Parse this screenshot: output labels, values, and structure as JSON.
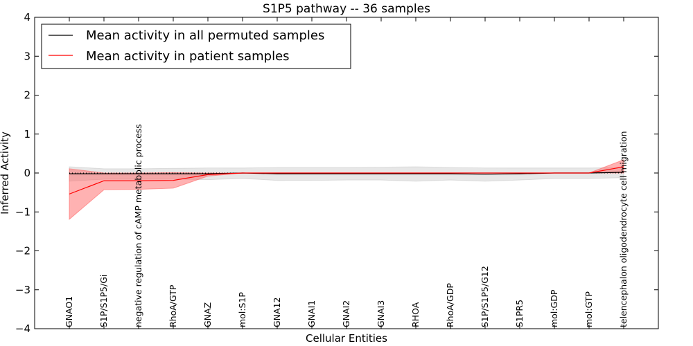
{
  "chart_data": {
    "type": "line",
    "title": "S1P5 pathway -- 36 samples",
    "xlabel": "Cellular Entities",
    "ylabel": "Inferred Activity",
    "ylim": [
      -4,
      4
    ],
    "yticks": [
      -4,
      -3,
      -2,
      -1,
      0,
      1,
      2,
      3,
      4
    ],
    "ytick_labels": [
      "−4",
      "−3",
      "−2",
      "−1",
      "0",
      "1",
      "2",
      "3",
      "4"
    ],
    "categories": [
      "GNAO1",
      "S1P/S1P5/Gi",
      "negative regulation of cAMP metabolic process",
      "RhoA/GTP",
      "GNAZ",
      "mol:S1P",
      "GNA12",
      "GNAI1",
      "GNAI2",
      "GNAI3",
      "RHOA",
      "RhoA/GDP",
      "S1P/S1P5/G12",
      "S1PR5",
      "mol:GDP",
      "mol:GTP",
      "telencephalon oligodendrocyte cell migration"
    ],
    "series": [
      {
        "name": "Mean activity in all permuted samples",
        "color": "#000000",
        "band_color": "#b0b0b0",
        "values": [
          -0.02,
          -0.02,
          -0.02,
          -0.02,
          -0.02,
          0.0,
          -0.02,
          -0.02,
          -0.02,
          -0.02,
          -0.02,
          -0.02,
          -0.03,
          -0.02,
          0.0,
          0.0,
          0.02
        ],
        "upper": [
          0.16,
          0.11,
          0.11,
          0.12,
          0.13,
          0.13,
          0.14,
          0.14,
          0.14,
          0.15,
          0.16,
          0.14,
          0.13,
          0.13,
          0.13,
          0.13,
          0.14
        ],
        "lower": [
          -0.21,
          -0.16,
          -0.16,
          -0.16,
          -0.17,
          -0.14,
          -0.19,
          -0.19,
          -0.18,
          -0.18,
          -0.21,
          -0.18,
          -0.21,
          -0.18,
          -0.14,
          -0.14,
          -0.12
        ]
      },
      {
        "name": "Mean activity in patient samples",
        "color": "#ff0000",
        "band_color": "#ff6666",
        "values": [
          -0.54,
          -0.2,
          -0.2,
          -0.19,
          -0.04,
          0.0,
          0.0,
          0.0,
          0.0,
          0.0,
          0.0,
          0.0,
          0.0,
          0.0,
          0.0,
          0.0,
          0.16
        ],
        "upper": [
          0.11,
          0.0,
          0.0,
          0.01,
          0.0,
          0.0,
          0.0,
          0.0,
          0.0,
          0.0,
          0.0,
          0.0,
          0.0,
          0.0,
          0.0,
          0.0,
          0.34
        ],
        "lower": [
          -1.19,
          -0.43,
          -0.42,
          -0.39,
          -0.08,
          0.0,
          0.0,
          0.0,
          0.0,
          0.0,
          0.0,
          0.0,
          0.0,
          0.0,
          0.0,
          0.0,
          0.0
        ]
      }
    ],
    "reference_line": {
      "y": 0,
      "style": "dotted"
    },
    "legend_position": "top-left"
  }
}
